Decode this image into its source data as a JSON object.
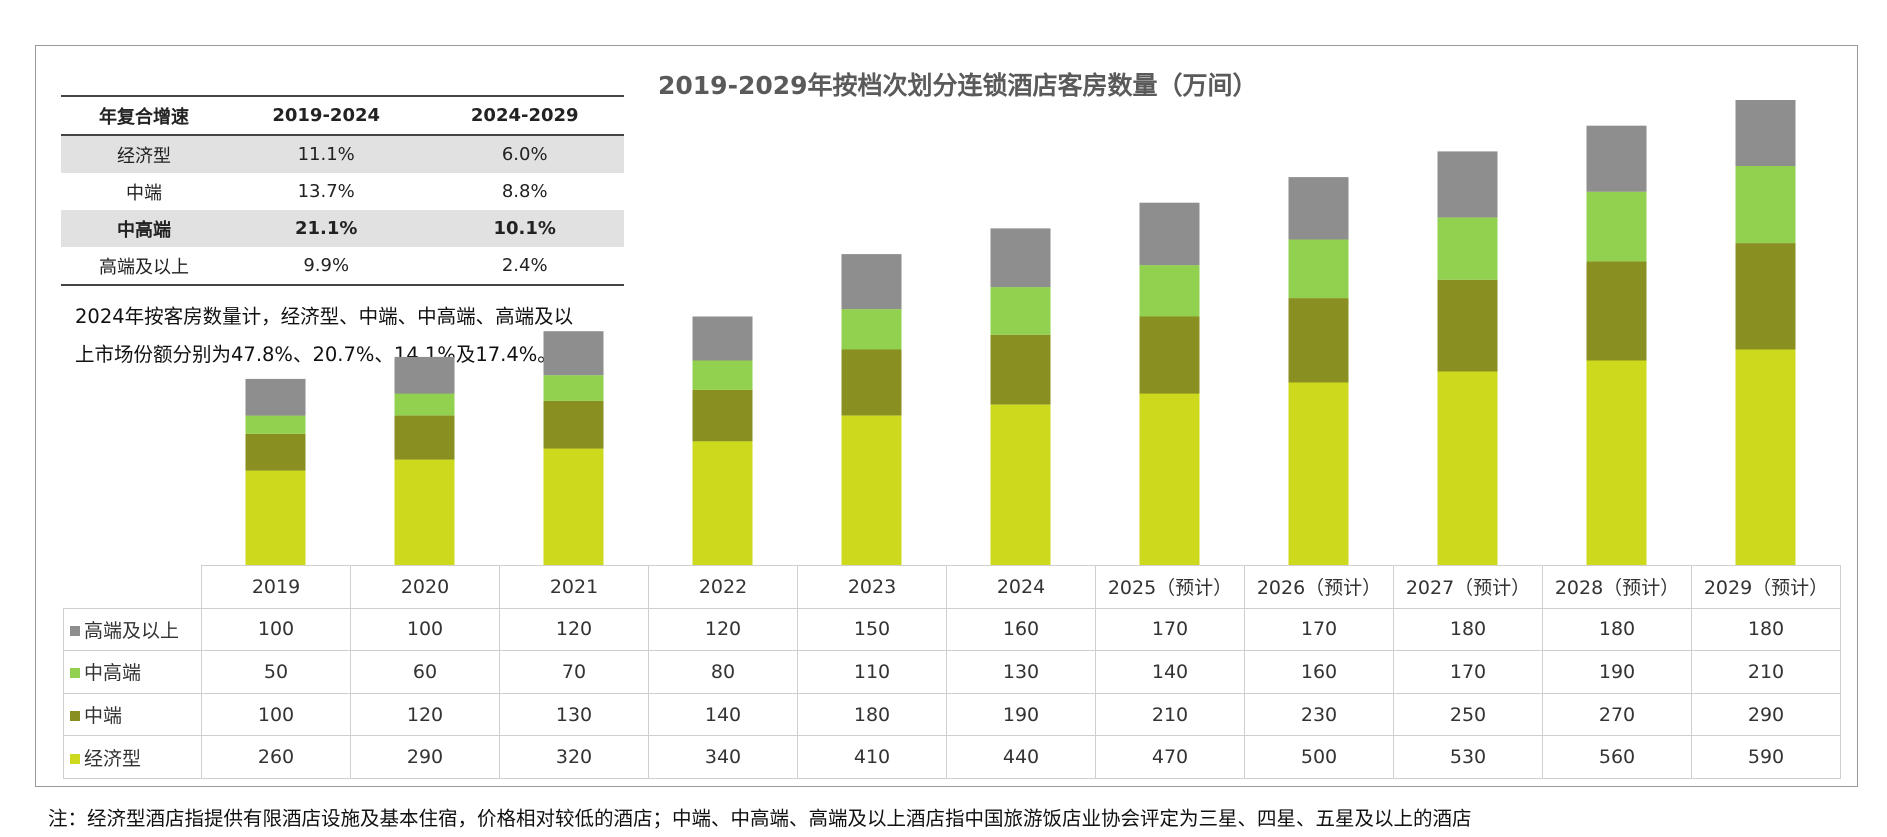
{
  "chart_data": {
    "type": "bar",
    "stacked": true,
    "title": "2019-2029年按档次划分连锁酒店客房数量（万间）",
    "categories": [
      "2019",
      "2020",
      "2021",
      "2022",
      "2023",
      "2024",
      "2025（预计）",
      "2026（预计）",
      "2027（预计）",
      "2028（预计）",
      "2029（预计）"
    ],
    "series": [
      {
        "name": "高端及以上",
        "color": "#8e8e8e",
        "values": [
          100,
          100,
          120,
          120,
          150,
          160,
          170,
          170,
          180,
          180,
          180
        ]
      },
      {
        "name": "中高端",
        "color": "#92d050",
        "values": [
          50,
          60,
          70,
          80,
          110,
          130,
          140,
          160,
          170,
          190,
          210
        ]
      },
      {
        "name": "中端",
        "color": "#8a8f22",
        "values": [
          100,
          120,
          130,
          140,
          180,
          190,
          210,
          230,
          250,
          270,
          290
        ]
      },
      {
        "name": "经济型",
        "color": "#cdd91c",
        "values": [
          260,
          290,
          320,
          340,
          410,
          440,
          470,
          500,
          530,
          560,
          590
        ]
      }
    ],
    "ylim": [
      0,
      1270
    ],
    "grid": false,
    "legend": "data-table-left"
  },
  "cagr_table": {
    "headers": [
      "年复合增速",
      "2019-2024",
      "2024-2029"
    ],
    "rows": [
      [
        "经济型",
        "11.1%",
        "6.0%"
      ],
      [
        "中端",
        "13.7%",
        "8.8%"
      ],
      [
        "中高端",
        "21.1%",
        "10.1%"
      ],
      [
        "高端及以上",
        "9.9%",
        "2.4%"
      ]
    ]
  },
  "note_lines": [
    "2024年按客房数量计，经济型、中端、中高端、高端及以",
    "上市场份额分别为47.8%、20.7%、14.1%及17.4%。"
  ],
  "footnote": "注：经济型酒店指提供有限酒店设施及基本住宿，价格相对较低的酒店；中端、中高端、高端及以上酒店指中国旅游饭店业协会评定为三星、四星、五星及以上的酒店"
}
